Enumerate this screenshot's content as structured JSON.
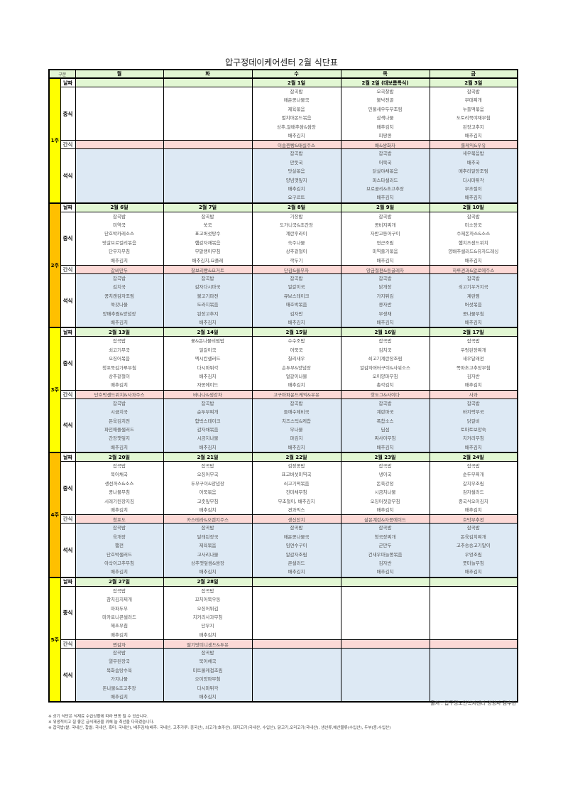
{
  "title": "압구정데이케어센터 2월 식단표",
  "header": {
    "gubun": "구분",
    "days": [
      "월",
      "화",
      "수",
      "목",
      "금"
    ]
  },
  "row_labels": {
    "date": "날짜",
    "lunch": "중식",
    "snack": "간식",
    "dinner": "석식"
  },
  "colors": {
    "header_bg": "#e2f5d3",
    "snack_bg": "#fcd9d6",
    "dinner_bg": "#dde9f4",
    "week_odd": "#ffff00",
    "week_even": "#ffc000"
  },
  "weeks": [
    {
      "label": "1주",
      "color": "#ffff00",
      "days": [
        {
          "date": "",
          "lunch": [],
          "snack": "",
          "dinner": []
        },
        {
          "date": "",
          "lunch": [],
          "snack": "",
          "dinner": []
        },
        {
          "date": "2월 1일",
          "lunch": [
            "잡곡밥",
            "매운콩나물국",
            "제육볶음",
            "멸치아몬드볶음",
            "상추,알배추쌈&쌈장",
            "배추김치"
          ],
          "snack": "이솜찐빵&매실주스",
          "dinner": [
            "잡곡밥",
            "만둣국",
            "맛살볶음",
            "양념깻잎지",
            "배추김치",
            "요구르트"
          ]
        },
        {
          "date": "2월 2일 (대보름특식)",
          "lunch": [
            "오곡찰밥",
            "불낙전골",
            "민물새우두부조림",
            "삼색나물",
            "배추김치",
            "피땅콩"
          ],
          "snack": "배&쌍화차",
          "dinner": [
            "잡곡밥",
            "어묵국",
            "닭살야채볶음",
            "파스타샐러드",
            "브로콜리&초고추장",
            "배추김치"
          ]
        },
        {
          "date": "2월 3일",
          "lunch": [
            "잡곡밥",
            "부대찌개",
            "누들떡볶음",
            "도토리묵야채무침",
            "된장고추지",
            "배추김치"
          ],
          "snack": "롤케익&우유",
          "dinner": [
            "새우볶음밥",
            "배추국",
            "메추리알장조림",
            "다시마튀각",
            "무초절이",
            "배추김치"
          ]
        }
      ]
    },
    {
      "label": "2주",
      "color": "#ffc000",
      "days": [
        {
          "date": "2월 6일",
          "lunch": [
            "잡곡밥",
            "미역국",
            "단호박카레소스",
            "맛살브로컬리볶음",
            "단무지무침",
            "배추김치"
          ],
          "snack": "갈비만두",
          "dinner": [
            "잡곡밥",
            "김치국",
            "꽁치캔감자조림",
            "쑥갓나물",
            "양배추찜&양념장",
            "배추김치"
          ]
        },
        {
          "date": "2월 7일",
          "lunch": [
            "잡곡밥",
            "쑥국",
            "표고버섯탕수",
            "햄감자채볶음",
            "무말랭이무침",
            "배추김치,요플레"
          ],
          "snack": "찰보리빵&요거트",
          "dinner": [
            "잡곡밥",
            "감자다시마국",
            "불고기파전",
            "도라지볶음",
            "된장고추지",
            "배추김치"
          ]
        },
        {
          "date": "2월 8일",
          "lunch": [
            "기장밥",
            "도가니국&초간장",
            "계란후라이",
            "숙주나물",
            "상추겉절이",
            "깍두기"
          ],
          "snack": "단감&율무차",
          "dinner": [
            "잡곡밥",
            "얼갈이국",
            "큐브스테이크",
            "애호박볶음",
            "김자반",
            "배추김치"
          ]
        },
        {
          "date": "2월 9일",
          "lunch": [
            "잡곡밥",
            "콩비지찌개",
            "자반고등어구이",
            "연근조림",
            "미역줄기볶음",
            "배추김치"
          ],
          "snack": "앙금절편&둥굴레차",
          "dinner": [
            "잡곡밥",
            "닭개장",
            "가지튀김",
            "콩자반",
            "무생채",
            "배추김치"
          ]
        },
        {
          "date": "2월 10일",
          "lunch": [
            "잡곡밥",
            "미소장국",
            "수제돈까스&소스",
            "햄치즈샌드위치",
            "양배추샐러드&유자드레싱",
            "배추김치"
          ],
          "snack": "하루견과&알로에주스",
          "dinner": [
            "잡곡밥",
            "쇠고기우거지국",
            "계란찜",
            "버섯볶음",
            "콩나물무침",
            "배추김치"
          ]
        }
      ]
    },
    {
      "label": "3주",
      "color": "#ffff00",
      "days": [
        {
          "date": "2월 13일",
          "lunch": [
            "잡곡밥",
            "쇠고기무국",
            "오징어볶음",
            "청포묵김가루무침",
            "상추겉절이",
            "배추김치"
          ],
          "snack": "단호박샌드위치&사과주스",
          "dinner": [
            "잡곡밥",
            "시금치국",
            "돈육김치전",
            "파인애플샐러드",
            "간장깻잎지",
            "배추김치"
          ]
        },
        {
          "date": "2월 14일",
          "lunch": [
            "꽃&돈나물비빔밥",
            "얼갈이국",
            "멕시칸샐러드",
            "다시마튀각",
            "배추김치",
            "자몽에이드"
          ],
          "snack": "바나나&생강차",
          "dinner": [
            "잡곡밥",
            "순두부찌개",
            "함박스테이크",
            "감자채볶음",
            "시금치나물",
            "배추김치"
          ]
        },
        {
          "date": "2월 15일",
          "lunch": [
            "수수조밥",
            "어묵국",
            "칠리새우",
            "손두부&양념장",
            "얼갈이나물",
            "배추김치"
          ],
          "snack": "고구마파운드케익&우유",
          "dinner": [
            "잡곡밥",
            "들깨수제비국",
            "치즈스틱&케찹",
            "무나물",
            "파김치",
            "배추김치"
          ]
        },
        {
          "date": "2월 16일",
          "lunch": [
            "잡곡밥",
            "김치국",
            "쇠고기계란장조림",
            "알감자버터구이&사워소스",
            "오이양파무침",
            "총각김치"
          ],
          "snack": "핫도그&사이다",
          "dinner": [
            "잡곡밥",
            "계란파국",
            "폭찹소스",
            "딤섬",
            "짜사이무침",
            "배추김치"
          ]
        },
        {
          "date": "2월 17일",
          "lunch": [
            "잡곡밥",
            "우렁된장찌개",
            "새우달래전",
            "쪽파초고추장무침",
            "김자반",
            "배추김치"
          ],
          "snack": "사과",
          "dinner": [
            "잡곡밥",
            "바지락무국",
            "닭갈비",
            "토마토보양숙",
            "치커리무침",
            "배추김치"
          ]
        }
      ]
    },
    {
      "label": "4주",
      "color": "#ffc000",
      "days": [
        {
          "date": "2월 20일",
          "lunch": [
            "잡곡밥",
            "북어채국",
            "생선까스&소스",
            "콩나물무침",
            "시래기된장지짐",
            "배추김치"
          ],
          "snack": "청포도",
          "dinner": [
            "잡곡밥",
            "육개장",
            "햄전",
            "단호박샐러드",
            "아삭이고추무침",
            "배추김치"
          ]
        },
        {
          "date": "2월 21일",
          "lunch": [
            "잡곡밥",
            "오징어무국",
            "두부구이&양념장",
            "어묵볶음",
            "고춧잎무침",
            "배추김치"
          ],
          "snack": "카스테라&오렌지주스",
          "dinner": [
            "잡곡밥",
            "달래된장국",
            "제육볶음",
            "고사리나물",
            "상추깻잎쌈&쌈장",
            "배추김치"
          ]
        },
        {
          "date": "2월 22일",
          "lunch": [
            "검정콩밥",
            "표고버섯미역국",
            "쇠고기떡볶음",
            "진미채무침",
            "무초절이, 배추김치",
            "견과믹스"
          ],
          "snack": "생신잔치",
          "dinner": [
            "잡곡밥",
            "매운콩나물국",
            "임연수구이",
            "알감자조림",
            "콘샐러드",
            "배추김치"
          ]
        },
        {
          "date": "2월 23일",
          "lunch": [
            "잡곡밥",
            "냉이국",
            "돈육강정",
            "시금치나물",
            "오징어젓갈무침",
            "배추김치"
          ],
          "snack": "삶은계란&자몽에이드",
          "dinner": [
            "잡곡밥",
            "청국장찌개",
            "군만두",
            "건새우마늘쫑볶음",
            "김자반",
            "배추김치"
          ]
        },
        {
          "date": "2월 24일",
          "lunch": [
            "잡곡밥",
            "순두부찌개",
            "갈치무조림",
            "감자샐러드",
            "중국식오이김치",
            "배추김치"
          ],
          "snack": "호박부추전",
          "dinner": [
            "잡곡밥",
            "돈육김치찌개",
            "고추송송고기말이",
            "우엉조림",
            "풋마늘무침",
            "배추김치"
          ]
        }
      ]
    },
    {
      "label": "5주",
      "color": "#ffff00",
      "days": [
        {
          "date": "2월 27일",
          "lunch": [
            "잡곡밥",
            "참치김치찌개",
            "마파두부",
            "마카로니콘샐러드",
            "해초무침",
            "배추김치"
          ],
          "snack": "찐감자",
          "dinner": [
            "잡곡밥",
            "열무된장국",
            "목화솜탕수육",
            "가지나물",
            "돈나물&초고추장",
            "배추김치"
          ]
        },
        {
          "date": "2월 28일",
          "lunch": [
            "잡곡밥",
            "꼬치어묵우동",
            "오징어튀김",
            "치커리사과무침",
            "단무지",
            "배추김치"
          ],
          "snack": "딸기맛미니샌드&두유",
          "dinner": [
            "잡곡밥",
            "북어채국",
            "미트볼케첩조림",
            "오이양파무침",
            "다시마튀각",
            "배추김치"
          ]
        },
        {
          "date": "",
          "lunch": [],
          "snack": "",
          "dinner": []
        },
        {
          "date": "",
          "lunch": [],
          "snack": "",
          "dinner": []
        },
        {
          "date": "",
          "lunch": [],
          "snack": "",
          "dinner": []
        }
      ]
    }
  ],
  "source": "출처 : 압구정노인복지센터 영양사 김수현",
  "notes": [
    "※ 상기 식단은 식재료 수급상황에 따라 변동 될 수 있습니다.",
    "※ 위생적이고 질 좋은 급식제공을 위해 늘 최선을 다하겠습니다.",
    "※ 잡곡밥(쌀: 국내산, 찹쌀: 국내산, 흑미: 국내산), 배추김치(배추: 국내산, 고추가루: 중국산), 쇠고기(호주산), 돼지고기(국내산, 수입산), 닭고기,오리고기(국내산), 생선류,해산물류(수입산), 두부(콩:수입산)"
  ]
}
